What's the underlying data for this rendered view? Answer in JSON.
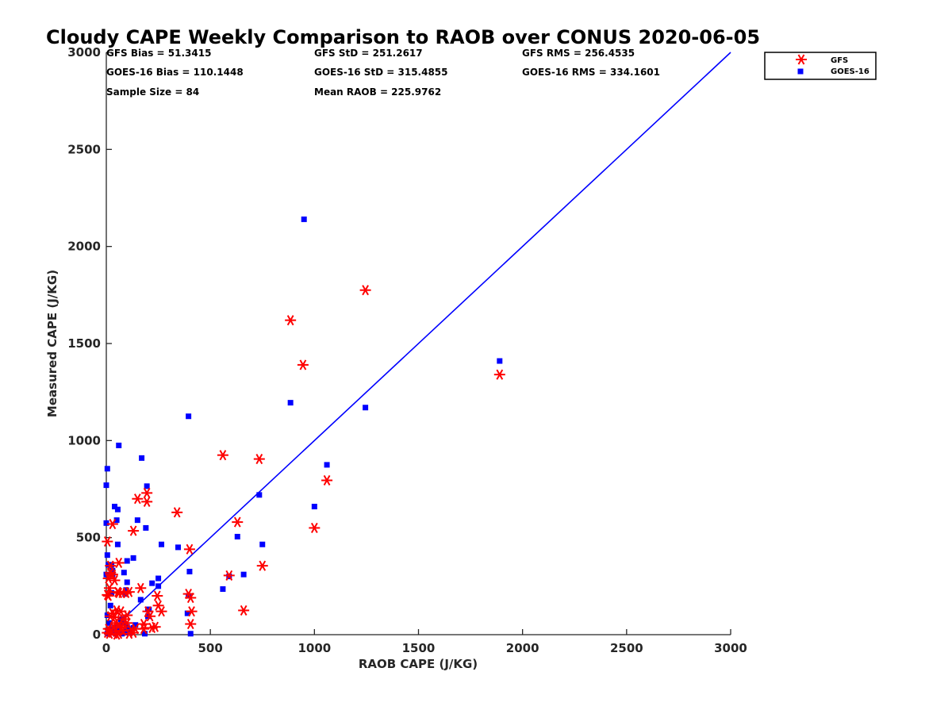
{
  "chart_data": {
    "type": "scatter",
    "title": "Cloudy CAPE Weekly Comparison to RAOB over CONUS 2020-06-05",
    "xlabel": "RAOB CAPE (J/KG)",
    "ylabel": "Measured CAPE (J/KG)",
    "xlim": [
      0,
      3000
    ],
    "ylim": [
      0,
      3000
    ],
    "xticks": [
      0,
      500,
      1000,
      1500,
      2000,
      2500,
      3000
    ],
    "yticks": [
      0,
      500,
      1000,
      1500,
      2000,
      2500,
      3000
    ],
    "legend_position": "top-right",
    "stats": [
      [
        "GFS Bias = 51.3415",
        "GFS StD = 251.2617",
        "GFS RMS = 256.4535"
      ],
      [
        "GOES-16 Bias = 110.1448",
        "GOES-16 StD = 315.4855",
        "GOES-16 RMS = 334.1601"
      ],
      [
        "Sample Size = 84",
        "Mean RAOB = 225.9762",
        ""
      ]
    ],
    "reference_line": {
      "x": [
        0,
        3000
      ],
      "y": [
        0,
        3000
      ],
      "color": "#0000ff"
    },
    "series": [
      {
        "name": "GFS",
        "marker": "asterisk",
        "color": "#ff0000",
        "points": [
          [
            1890,
            1340
          ],
          [
            1245,
            1775
          ],
          [
            885,
            1620
          ],
          [
            945,
            1390
          ],
          [
            1060,
            795
          ],
          [
            1000,
            550
          ],
          [
            735,
            905
          ],
          [
            560,
            925
          ],
          [
            750,
            355
          ],
          [
            660,
            125
          ],
          [
            630,
            580
          ],
          [
            590,
            305
          ],
          [
            400,
            440
          ],
          [
            395,
            210
          ],
          [
            405,
            190
          ],
          [
            410,
            120
          ],
          [
            405,
            55
          ],
          [
            340,
            630
          ],
          [
            195,
            730
          ],
          [
            195,
            685
          ],
          [
            150,
            700
          ],
          [
            130,
            535
          ],
          [
            165,
            240
          ],
          [
            245,
            200
          ],
          [
            250,
            150
          ],
          [
            265,
            120
          ],
          [
            220,
            35
          ],
          [
            235,
            40
          ],
          [
            180,
            30
          ],
          [
            200,
            120
          ],
          [
            210,
            95
          ],
          [
            180,
            55
          ],
          [
            110,
            220
          ],
          [
            95,
            215
          ],
          [
            75,
            215
          ],
          [
            60,
            215
          ],
          [
            60,
            370
          ],
          [
            70,
            120
          ],
          [
            50,
            125
          ],
          [
            55,
            220
          ],
          [
            40,
            280
          ],
          [
            30,
            310
          ],
          [
            20,
            320
          ],
          [
            20,
            355
          ],
          [
            10,
            290
          ],
          [
            5,
            480
          ],
          [
            10,
            200
          ],
          [
            5,
            205
          ],
          [
            30,
            110
          ],
          [
            40,
            90
          ],
          [
            20,
            95
          ],
          [
            10,
            30
          ],
          [
            5,
            10
          ],
          [
            15,
            5
          ],
          [
            25,
            15
          ],
          [
            35,
            40
          ],
          [
            45,
            60
          ],
          [
            60,
            50
          ],
          [
            70,
            35
          ],
          [
            80,
            20
          ],
          [
            90,
            40
          ],
          [
            100,
            60
          ],
          [
            110,
            5
          ],
          [
            120,
            25
          ],
          [
            130,
            10
          ],
          [
            140,
            30
          ],
          [
            60,
            5
          ],
          [
            50,
            0
          ],
          [
            80,
            80
          ],
          [
            100,
            100
          ],
          [
            30,
            570
          ],
          [
            15,
            240
          ]
        ]
      },
      {
        "name": "GOES-16",
        "marker": "square",
        "color": "#0000ff",
        "points": [
          [
            950,
            2140
          ],
          [
            1890,
            1410
          ],
          [
            1245,
            1170
          ],
          [
            885,
            1195
          ],
          [
            1060,
            875
          ],
          [
            1000,
            660
          ],
          [
            735,
            720
          ],
          [
            750,
            465
          ],
          [
            630,
            505
          ],
          [
            660,
            310
          ],
          [
            590,
            300
          ],
          [
            560,
            235
          ],
          [
            395,
            1125
          ],
          [
            400,
            325
          ],
          [
            395,
            200
          ],
          [
            390,
            110
          ],
          [
            405,
            5
          ],
          [
            345,
            450
          ],
          [
            265,
            465
          ],
          [
            250,
            290
          ],
          [
            250,
            250
          ],
          [
            220,
            265
          ],
          [
            195,
            765
          ],
          [
            190,
            550
          ],
          [
            170,
            910
          ],
          [
            165,
            180
          ],
          [
            150,
            590
          ],
          [
            130,
            395
          ],
          [
            200,
            130
          ],
          [
            200,
            95
          ],
          [
            205,
            130
          ],
          [
            185,
            5
          ],
          [
            100,
            380
          ],
          [
            100,
            270
          ],
          [
            95,
            230
          ],
          [
            85,
            320
          ],
          [
            90,
            210
          ],
          [
            80,
            60
          ],
          [
            60,
            975
          ],
          [
            55,
            645
          ],
          [
            50,
            590
          ],
          [
            55,
            465
          ],
          [
            40,
            660
          ],
          [
            30,
            330
          ],
          [
            25,
            360
          ],
          [
            30,
            310
          ],
          [
            25,
            215
          ],
          [
            20,
            150
          ],
          [
            5,
            855
          ],
          [
            0,
            770
          ],
          [
            0,
            575
          ],
          [
            5,
            410
          ],
          [
            10,
            360
          ],
          [
            0,
            310
          ],
          [
            5,
            100
          ],
          [
            15,
            60
          ],
          [
            25,
            30
          ],
          [
            35,
            10
          ],
          [
            45,
            5
          ],
          [
            55,
            25
          ],
          [
            65,
            45
          ],
          [
            75,
            5
          ],
          [
            85,
            15
          ],
          [
            100,
            40
          ],
          [
            110,
            10
          ],
          [
            130,
            35
          ],
          [
            5,
            5
          ],
          [
            10,
            20
          ],
          [
            140,
            50
          ],
          [
            70,
            80
          ]
        ]
      }
    ]
  }
}
